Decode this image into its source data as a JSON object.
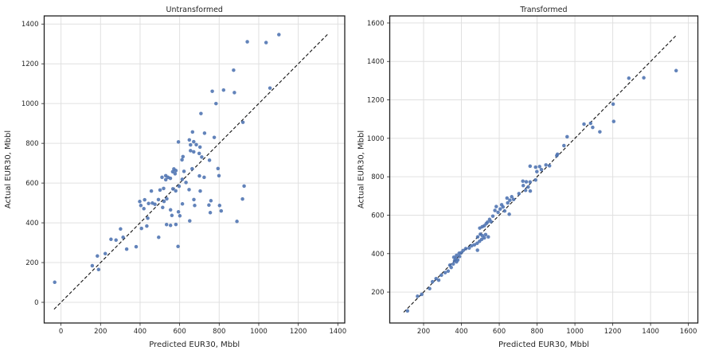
{
  "figure": {
    "background": "#FFFFFF",
    "style": {
      "point_color": "#4C72B0",
      "point_opacity": 0.88,
      "point_radius": 2.25,
      "grid_color": "#E0E0E0",
      "frame_color": "#1F1F1F",
      "text_color": "#262626",
      "identity_line_color": "#111111"
    }
  },
  "chart_data": [
    {
      "type": "scatter",
      "title": "Untransformed",
      "xlabel": "Predicted EUR30, Mbbl",
      "ylabel": "Actual EUR30, Mbbl",
      "xlim": [
        -85,
        1435
      ],
      "ylim": [
        -104,
        1441
      ],
      "xticks": [
        0,
        200,
        400,
        600,
        800,
        1000,
        1200,
        1400
      ],
      "yticks": [
        0,
        200,
        400,
        600,
        800,
        1000,
        1200,
        1400
      ],
      "grid": true,
      "legend": null,
      "identity_line": {
        "x": [
          -35,
          1352
        ],
        "y": [
          -35,
          1352
        ],
        "style": "dashed"
      },
      "points": [
        [
          -32,
          101
        ],
        [
          158,
          184
        ],
        [
          190,
          165
        ],
        [
          184,
          233
        ],
        [
          224,
          245
        ],
        [
          253,
          317
        ],
        [
          278,
          313
        ],
        [
          301,
          369
        ],
        [
          314,
          327
        ],
        [
          332,
          268
        ],
        [
          380,
          280
        ],
        [
          398,
          507
        ],
        [
          404,
          487
        ],
        [
          407,
          372
        ],
        [
          419,
          471
        ],
        [
          423,
          516
        ],
        [
          434,
          384
        ],
        [
          439,
          423
        ],
        [
          443,
          497
        ],
        [
          457,
          560
        ],
        [
          462,
          499
        ],
        [
          475,
          493
        ],
        [
          493,
          517
        ],
        [
          494,
          327
        ],
        [
          501,
          565
        ],
        [
          511,
          629
        ],
        [
          514,
          477
        ],
        [
          519,
          573
        ],
        [
          521,
          508
        ],
        [
          530,
          637
        ],
        [
          530,
          617
        ],
        [
          534,
          391
        ],
        [
          535,
          521
        ],
        [
          541,
          629
        ],
        [
          553,
          624
        ],
        [
          554,
          465
        ],
        [
          554,
          387
        ],
        [
          561,
          437
        ],
        [
          565,
          657
        ],
        [
          566,
          571
        ],
        [
          571,
          671
        ],
        [
          577,
          647
        ],
        [
          580,
          561
        ],
        [
          581,
          663
        ],
        [
          581,
          392
        ],
        [
          592,
          281
        ],
        [
          594,
          807
        ],
        [
          594,
          455
        ],
        [
          597,
          584
        ],
        [
          601,
          435
        ],
        [
          612,
          717
        ],
        [
          613,
          619
        ],
        [
          614,
          495
        ],
        [
          617,
          733
        ],
        [
          622,
          659
        ],
        [
          632,
          603
        ],
        [
          648,
          567
        ],
        [
          649,
          817
        ],
        [
          651,
          410
        ],
        [
          655,
          792
        ],
        [
          655,
          763
        ],
        [
          663,
          672
        ],
        [
          665,
          857
        ],
        [
          671,
          808
        ],
        [
          671,
          757
        ],
        [
          672,
          517
        ],
        [
          676,
          487
        ],
        [
          684,
          793
        ],
        [
          699,
          749
        ],
        [
          700,
          636
        ],
        [
          703,
          781
        ],
        [
          704,
          560
        ],
        [
          708,
          950
        ],
        [
          712,
          731
        ],
        [
          724,
          629
        ],
        [
          726,
          851
        ],
        [
          748,
          489
        ],
        [
          751,
          715
        ],
        [
          755,
          451
        ],
        [
          758,
          511
        ],
        [
          765,
          1062
        ],
        [
          775,
          830
        ],
        [
          784,
          1000
        ],
        [
          794,
          673
        ],
        [
          799,
          637
        ],
        [
          802,
          487
        ],
        [
          810,
          460
        ],
        [
          822,
          1068
        ],
        [
          873,
          1168
        ],
        [
          877,
          1055
        ],
        [
          890,
          407
        ],
        [
          918,
          520
        ],
        [
          920,
          906
        ],
        [
          926,
          585
        ],
        [
          942,
          1311
        ],
        [
          1037,
          1307
        ],
        [
          1057,
          1078
        ],
        [
          1102,
          1347
        ]
      ]
    },
    {
      "type": "scatter",
      "title": "Transformed",
      "xlabel": "Predicted EUR30, Mbbl",
      "ylabel": "Actual EUR30, Mbbl",
      "xlim": [
        21,
        1650
      ],
      "ylim": [
        39,
        1637
      ],
      "xticks": [
        200,
        400,
        600,
        800,
        1000,
        1200,
        1400,
        1600
      ],
      "yticks": [
        200,
        400,
        600,
        800,
        1000,
        1200,
        1400,
        1600
      ],
      "grid": true,
      "legend": null,
      "identity_line": {
        "x": [
          95,
          1540
        ],
        "y": [
          95,
          1540
        ],
        "style": "dashed"
      },
      "points": [
        [
          115,
          102
        ],
        [
          168,
          178
        ],
        [
          190,
          188
        ],
        [
          232,
          218
        ],
        [
          247,
          254
        ],
        [
          266,
          270
        ],
        [
          280,
          262
        ],
        [
          294,
          288
        ],
        [
          314,
          301
        ],
        [
          330,
          309
        ],
        [
          339,
          340
        ],
        [
          346,
          328
        ],
        [
          357,
          346
        ],
        [
          364,
          363
        ],
        [
          374,
          357
        ],
        [
          360,
          381
        ],
        [
          371,
          374
        ],
        [
          374,
          391
        ],
        [
          381,
          367
        ],
        [
          388,
          402
        ],
        [
          390,
          385
        ],
        [
          399,
          405
        ],
        [
          409,
          416
        ],
        [
          423,
          426
        ],
        [
          441,
          429
        ],
        [
          454,
          441
        ],
        [
          469,
          446
        ],
        [
          483,
          454
        ],
        [
          485,
          418
        ],
        [
          486,
          487
        ],
        [
          496,
          464
        ],
        [
          497,
          533
        ],
        [
          500,
          501
        ],
        [
          507,
          474
        ],
        [
          510,
          540
        ],
        [
          511,
          493
        ],
        [
          521,
          482
        ],
        [
          521,
          545
        ],
        [
          528,
          499
        ],
        [
          531,
          556
        ],
        [
          538,
          564
        ],
        [
          542,
          487
        ],
        [
          549,
          578
        ],
        [
          556,
          567
        ],
        [
          566,
          595
        ],
        [
          577,
          625
        ],
        [
          584,
          645
        ],
        [
          594,
          615
        ],
        [
          605,
          632
        ],
        [
          613,
          654
        ],
        [
          620,
          643
        ],
        [
          629,
          622
        ],
        [
          641,
          689
        ],
        [
          645,
          664
        ],
        [
          653,
          605
        ],
        [
          656,
          678
        ],
        [
          666,
          696
        ],
        [
          676,
          682
        ],
        [
          704,
          712
        ],
        [
          725,
          777
        ],
        [
          727,
          754
        ],
        [
          739,
          729
        ],
        [
          743,
          774
        ],
        [
          753,
          747
        ],
        [
          763,
          773
        ],
        [
          764,
          726
        ],
        [
          763,
          855
        ],
        [
          792,
          783
        ],
        [
          792,
          850
        ],
        [
          799,
          827
        ],
        [
          813,
          853
        ],
        [
          823,
          837
        ],
        [
          847,
          861
        ],
        [
          866,
          857
        ],
        [
          904,
          910
        ],
        [
          908,
          917
        ],
        [
          942,
          962
        ],
        [
          959,
          1008
        ],
        [
          1048,
          1074
        ],
        [
          1083,
          1078
        ],
        [
          1094,
          1057
        ],
        [
          1132,
          1034
        ],
        [
          1202,
          1178
        ],
        [
          1205,
          1088
        ],
        [
          1285,
          1313
        ],
        [
          1364,
          1315
        ],
        [
          1535,
          1352
        ]
      ]
    }
  ]
}
